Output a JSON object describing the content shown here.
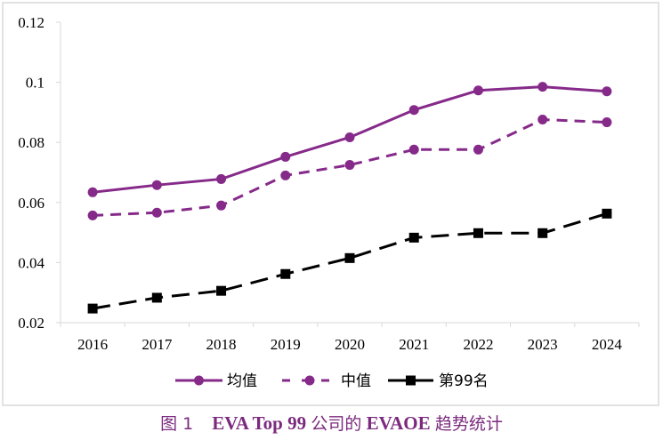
{
  "chart_data": {
    "type": "line",
    "title": "",
    "xlabel": "",
    "ylabel": "",
    "categories": [
      "2016",
      "2017",
      "2018",
      "2019",
      "2020",
      "2021",
      "2022",
      "2023",
      "2024"
    ],
    "ylim": [
      0.02,
      0.12
    ],
    "yticks": [
      0.02,
      0.04,
      0.06,
      0.08,
      0.1,
      0.12
    ],
    "ytick_labels": [
      "0.02",
      "0.04",
      "0.06",
      "0.08",
      "0.1",
      "0.12"
    ],
    "grid": false,
    "legend_position": "bottom",
    "series": [
      {
        "name": "均值",
        "color": "#862a8a",
        "line_style": "solid",
        "marker": "circle",
        "values": [
          0.0634,
          0.0658,
          0.0678,
          0.0752,
          0.0817,
          0.0908,
          0.0973,
          0.0985,
          0.097
        ]
      },
      {
        "name": "中值",
        "color": "#862a8a",
        "line_style": "dashed",
        "marker": "circle",
        "values": [
          0.0557,
          0.0566,
          0.059,
          0.069,
          0.0725,
          0.0776,
          0.0776,
          0.0876,
          0.0867
        ]
      },
      {
        "name": "第99名",
        "color": "#000000",
        "line_style": "long-dashed",
        "marker": "square",
        "values": [
          0.0247,
          0.0283,
          0.0306,
          0.0362,
          0.0415,
          0.0483,
          0.0498,
          0.0498,
          0.0563
        ]
      }
    ]
  },
  "caption": {
    "figure_label": "图 1",
    "title_part1": "EVA Top 99",
    "title_part2": "公司的",
    "title_part3": "EVAOE",
    "title_part4": "趋势统计"
  }
}
